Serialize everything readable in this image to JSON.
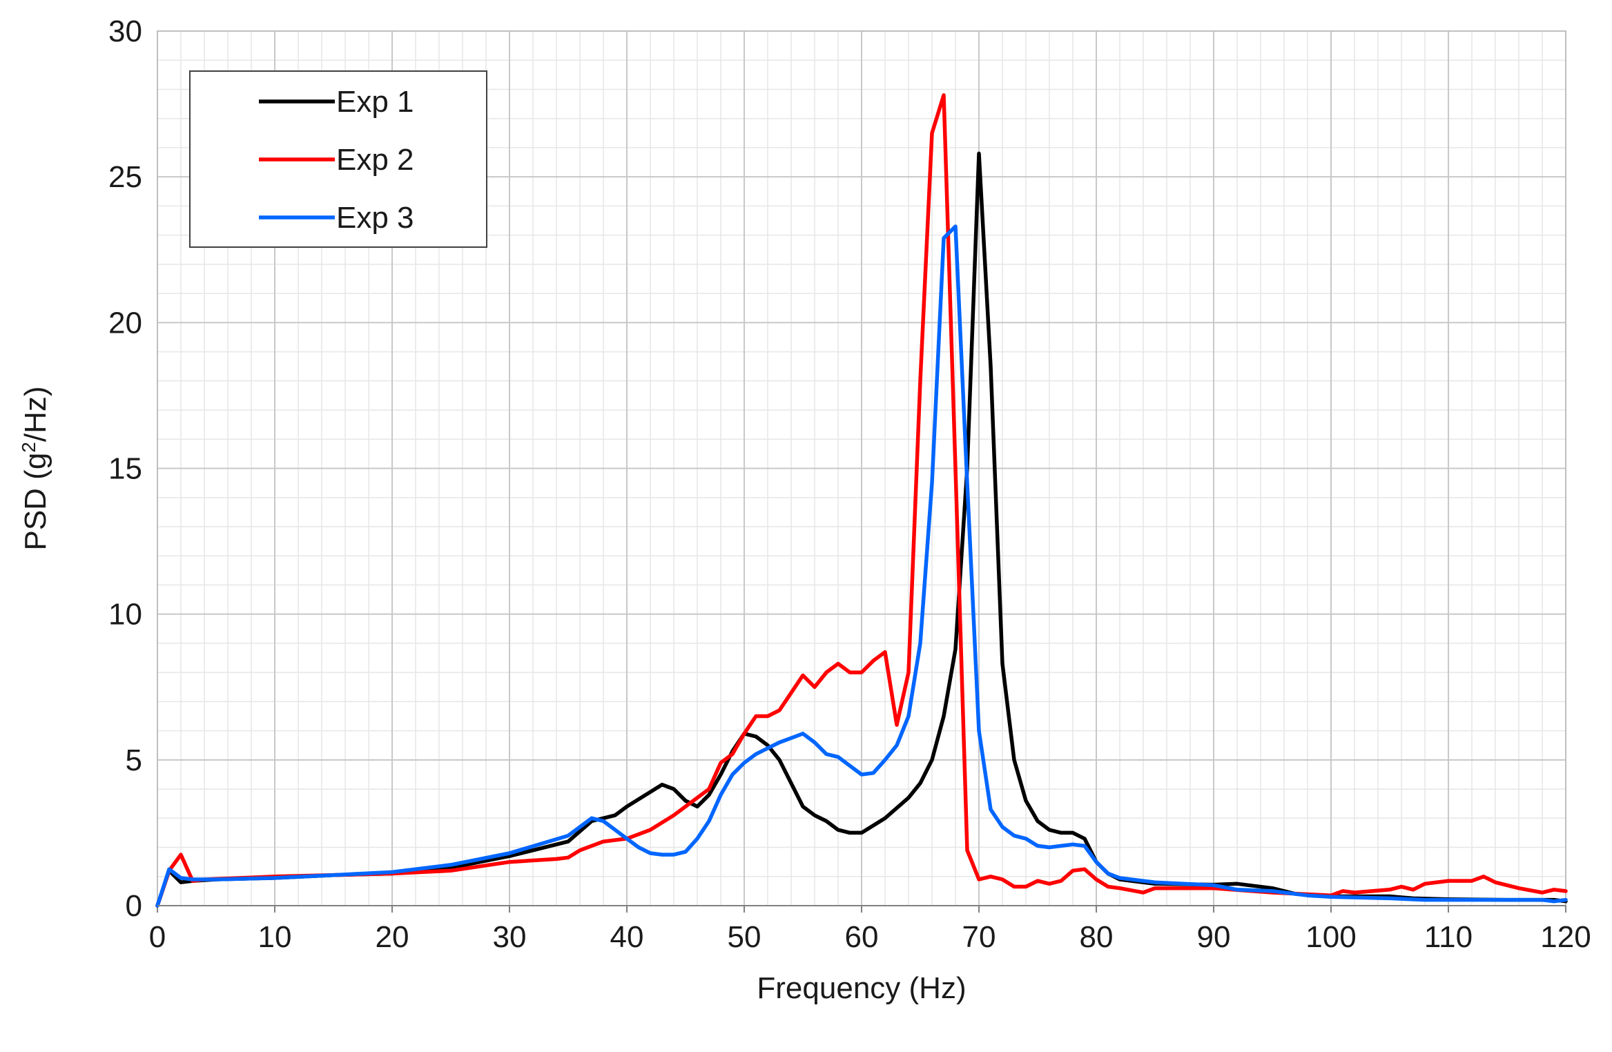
{
  "chart_data": {
    "type": "line",
    "title": "",
    "xlabel": "Frequency (Hz)",
    "ylabel_prefix": "PSD (g",
    "ylabel_sup": "2",
    "ylabel_suffix": "/Hz)",
    "xlim": [
      0,
      120
    ],
    "ylim": [
      0,
      30
    ],
    "x_major_ticks": [
      0,
      10,
      20,
      30,
      40,
      50,
      60,
      70,
      80,
      90,
      100,
      110,
      120
    ],
    "x_tick_labels": [
      "0",
      "10",
      "20",
      "30",
      "40",
      "50",
      "60",
      "70",
      "80",
      "90",
      "100",
      "110",
      "120"
    ],
    "y_major_ticks": [
      0,
      5,
      10,
      15,
      20,
      25,
      30
    ],
    "y_tick_labels": [
      "0",
      "5",
      "10",
      "15",
      "20",
      "25",
      "30"
    ],
    "x_minor_step": 2,
    "y_minor_step": 1,
    "grid": true,
    "legend_position": "top-left",
    "series": [
      {
        "name": "Exp 1",
        "color": "#000000",
        "x": [
          0,
          1,
          2,
          3,
          5,
          10,
          15,
          20,
          25,
          30,
          35,
          37,
          38,
          39,
          40,
          42,
          43,
          44,
          45,
          46,
          47,
          48,
          49,
          50,
          51,
          52,
          53,
          54,
          55,
          56,
          57,
          58,
          59,
          60,
          62,
          64,
          65,
          66,
          67,
          68,
          69,
          70,
          71,
          72,
          73,
          74,
          75,
          76,
          77,
          78,
          79,
          80,
          81,
          82,
          85,
          90,
          92,
          95,
          97,
          100,
          105,
          107,
          110,
          115,
          118,
          119,
          120
        ],
        "y": [
          0,
          1.2,
          0.8,
          0.85,
          0.9,
          0.95,
          1.05,
          1.1,
          1.3,
          1.7,
          2.2,
          2.9,
          3.0,
          3.1,
          3.4,
          3.9,
          4.15,
          4.0,
          3.6,
          3.4,
          3.8,
          4.5,
          5.3,
          5.9,
          5.8,
          5.5,
          5.0,
          4.2,
          3.4,
          3.1,
          2.9,
          2.6,
          2.5,
          2.5,
          3.0,
          3.7,
          4.2,
          5.0,
          6.5,
          8.8,
          15.0,
          25.8,
          18.5,
          8.3,
          5.0,
          3.6,
          2.9,
          2.6,
          2.5,
          2.5,
          2.3,
          1.5,
          1.1,
          0.9,
          0.75,
          0.72,
          0.75,
          0.6,
          0.4,
          0.32,
          0.32,
          0.25,
          0.22,
          0.2,
          0.2,
          0.2,
          0.15
        ]
      },
      {
        "name": "Exp 2",
        "color": "#ff0000",
        "x": [
          0,
          1,
          2,
          3,
          4,
          10,
          20,
          25,
          30,
          32,
          34,
          35,
          36,
          38,
          40,
          42,
          44,
          46,
          47,
          48,
          49,
          50,
          51,
          52,
          53,
          54,
          55,
          56,
          57,
          58,
          59,
          60,
          61,
          62,
          63,
          64,
          65,
          66,
          67,
          68,
          69,
          70,
          71,
          72,
          73,
          74,
          75,
          76,
          77,
          78,
          79,
          80,
          81,
          82,
          84,
          85,
          90,
          95,
          100,
          101,
          102,
          105,
          106,
          107,
          108,
          110,
          112,
          113,
          114,
          116,
          118,
          119,
          120
        ],
        "y": [
          0,
          1.2,
          1.75,
          0.85,
          0.9,
          1.0,
          1.1,
          1.2,
          1.5,
          1.55,
          1.6,
          1.65,
          1.9,
          2.2,
          2.3,
          2.6,
          3.1,
          3.7,
          4.0,
          4.9,
          5.2,
          5.9,
          6.5,
          6.5,
          6.7,
          7.3,
          7.9,
          7.5,
          8.0,
          8.3,
          8.0,
          8.0,
          8.4,
          8.7,
          6.2,
          8.0,
          18.0,
          26.5,
          27.8,
          15.0,
          1.9,
          0.9,
          1.0,
          0.9,
          0.65,
          0.65,
          0.85,
          0.75,
          0.85,
          1.2,
          1.25,
          0.9,
          0.65,
          0.6,
          0.45,
          0.6,
          0.6,
          0.45,
          0.35,
          0.5,
          0.45,
          0.55,
          0.65,
          0.55,
          0.75,
          0.85,
          0.85,
          1.0,
          0.8,
          0.6,
          0.45,
          0.55,
          0.5
        ]
      },
      {
        "name": "Exp 3",
        "color": "#0066ff",
        "x": [
          0,
          1,
          2,
          3,
          5,
          10,
          15,
          20,
          25,
          30,
          35,
          36,
          37,
          38,
          39,
          40,
          41,
          42,
          43,
          44,
          45,
          46,
          47,
          48,
          49,
          50,
          51,
          52,
          53,
          54,
          55,
          56,
          57,
          58,
          59,
          60,
          61,
          62,
          63,
          64,
          65,
          66,
          67,
          68,
          69,
          70,
          71,
          72,
          73,
          74,
          75,
          76,
          77,
          78,
          79,
          80,
          81,
          82,
          85,
          90,
          92,
          95,
          98,
          100,
          105,
          108,
          110,
          115,
          118,
          119,
          120
        ],
        "y": [
          0,
          1.25,
          0.95,
          0.9,
          0.9,
          0.95,
          1.05,
          1.15,
          1.4,
          1.8,
          2.4,
          2.7,
          3.0,
          2.9,
          2.6,
          2.3,
          2.0,
          1.8,
          1.75,
          1.75,
          1.85,
          2.3,
          2.9,
          3.8,
          4.5,
          4.9,
          5.2,
          5.4,
          5.6,
          5.75,
          5.9,
          5.6,
          5.2,
          5.1,
          4.8,
          4.5,
          4.55,
          5.0,
          5.5,
          6.5,
          9.0,
          14.5,
          22.9,
          23.3,
          14.5,
          6.0,
          3.3,
          2.7,
          2.4,
          2.3,
          2.05,
          2.0,
          2.05,
          2.1,
          2.05,
          1.5,
          1.1,
          0.95,
          0.8,
          0.7,
          0.55,
          0.5,
          0.35,
          0.3,
          0.25,
          0.2,
          0.2,
          0.2,
          0.2,
          0.15,
          0.2
        ]
      }
    ]
  }
}
